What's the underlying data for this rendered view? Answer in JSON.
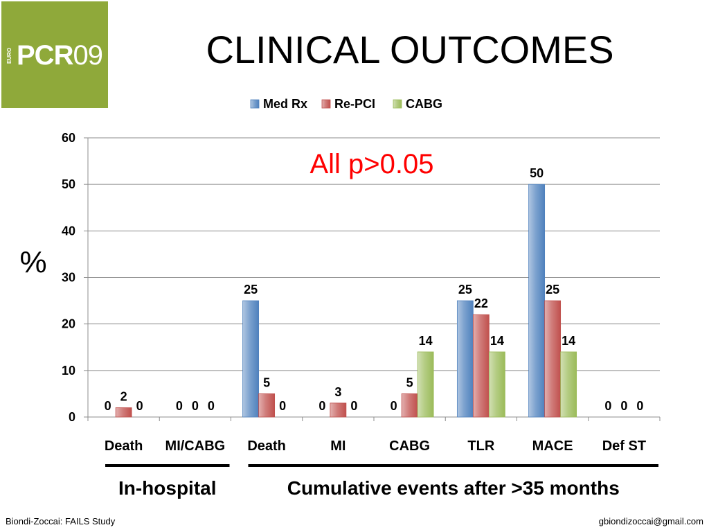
{
  "logo": {
    "euro": "EURO",
    "brand": "PCR",
    "year": "09"
  },
  "slide_title": "CLINICAL OUTCOMES",
  "annotation": "All p>0.05",
  "groups": [
    {
      "label": "In-hospital",
      "from": 0,
      "to": 1
    },
    {
      "label": "Cumulative events after >35 months",
      "from": 2,
      "to": 7
    }
  ],
  "footer": {
    "left": "Biondi-Zoccai: FAILS Study",
    "right": "gbiondizoccai@gmail.com"
  },
  "colors": {
    "logo_bg": "#8fa93a",
    "annotation": "#ff0000"
  },
  "chart_data": {
    "type": "bar",
    "title": "",
    "xlabel": "",
    "ylabel": "%",
    "ylim": [
      0,
      60
    ],
    "yticks": [
      0,
      10,
      20,
      30,
      40,
      50,
      60
    ],
    "grid": true,
    "legend_position": "top",
    "categories": [
      "Death",
      "MI/CABG",
      "Death",
      "MI",
      "CABG",
      "TLR",
      "MACE",
      "Def ST"
    ],
    "series": [
      {
        "name": "Med Rx",
        "color": "#4f81bd",
        "values": [
          0,
          0,
          25,
          0,
          0,
          25,
          50,
          0
        ]
      },
      {
        "name": "Re-PCI",
        "color": "#c0504d",
        "values": [
          2,
          0,
          5,
          3,
          5,
          22,
          25,
          0
        ]
      },
      {
        "name": "CABG",
        "color": "#9bbb59",
        "values": [
          0,
          0,
          0,
          0,
          14,
          14,
          14,
          0
        ]
      }
    ]
  }
}
